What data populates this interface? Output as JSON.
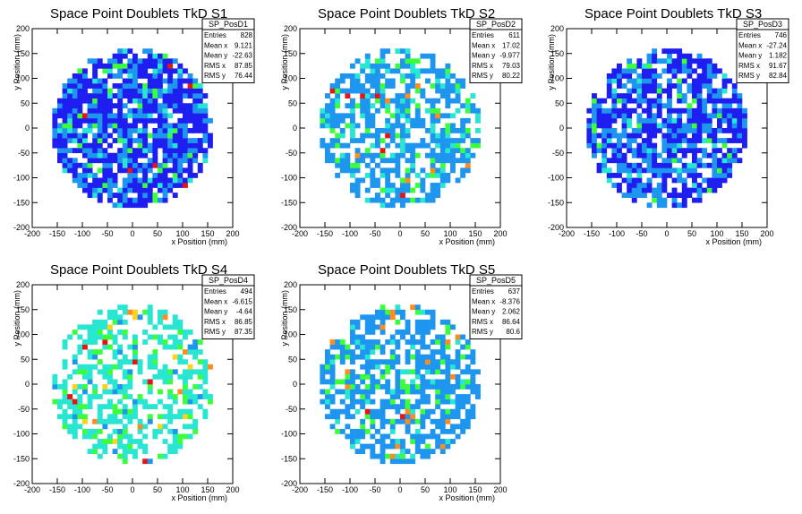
{
  "palette": {
    "navy": "#1e1ef0",
    "blue": "#1e96f0",
    "cyan": "#28e6d2",
    "green": "#3cff3c",
    "yellow": "#ffd21e",
    "orange": "#ff8c1e",
    "red": "#e61414"
  },
  "chart_data": [
    {
      "type": "heatmap",
      "title": "Space Point Doublets TkD S1",
      "xlabel": "x Position (mm)",
      "ylabel": "y Position (mm)",
      "xlim": [
        -200,
        200
      ],
      "ylim": [
        -200,
        200
      ],
      "xticks": [
        -200,
        -150,
        -100,
        -50,
        0,
        50,
        100,
        150,
        200
      ],
      "yticks": [
        -200,
        -150,
        -100,
        -50,
        0,
        50,
        100,
        150,
        200
      ],
      "grid": false,
      "legend": "top-right stats box",
      "stats": {
        "name": "SP_PosD1",
        "rows": [
          {
            "label": "Entries",
            "value": "828"
          },
          {
            "label": "Mean x",
            "value": "9.121"
          },
          {
            "label": "Mean y",
            "value": "-22.63"
          },
          {
            "label": "RMS x",
            "value": "87.85"
          },
          {
            "label": "RMS y",
            "value": "76.44"
          }
        ]
      },
      "fill": {
        "radius": 160,
        "density": 0.84,
        "seed": 11,
        "weights": {
          "navy": 0.58,
          "blue": 0.3,
          "cyan": 0.07,
          "green": 0.045,
          "red": 0.005
        }
      }
    },
    {
      "type": "heatmap",
      "title": "Space Point Doublets TkD S2",
      "xlabel": "x Position (mm)",
      "ylabel": "y Position (mm)",
      "xlim": [
        -200,
        200
      ],
      "ylim": [
        -200,
        200
      ],
      "xticks": [
        -200,
        -150,
        -100,
        -50,
        0,
        50,
        100,
        150,
        200
      ],
      "yticks": [
        -200,
        -150,
        -100,
        -50,
        0,
        50,
        100,
        150,
        200
      ],
      "grid": false,
      "legend": "top-right stats box",
      "stats": {
        "name": "SP_PosD2",
        "rows": [
          {
            "label": "Entries",
            "value": "611"
          },
          {
            "label": "Mean x",
            "value": "17.02"
          },
          {
            "label": "Mean y",
            "value": "-9.977"
          },
          {
            "label": "RMS x",
            "value": "79.03"
          },
          {
            "label": "RMS y",
            "value": "80.22"
          }
        ]
      },
      "fill": {
        "radius": 160,
        "density": 0.62,
        "seed": 23,
        "weights": {
          "blue": 0.72,
          "cyan": 0.16,
          "green": 0.09,
          "orange": 0.02,
          "red": 0.01
        }
      }
    },
    {
      "type": "heatmap",
      "title": "Space Point Doublets TkD S3",
      "xlabel": "x Position (mm)",
      "ylabel": "y Position (mm)",
      "xlim": [
        -200,
        200
      ],
      "ylim": [
        -200,
        200
      ],
      "xticks": [
        -200,
        -150,
        -100,
        -50,
        0,
        50,
        100,
        150,
        200
      ],
      "yticks": [
        -200,
        -150,
        -100,
        -50,
        0,
        50,
        100,
        150,
        200
      ],
      "grid": false,
      "legend": "top-right stats box",
      "stats": {
        "name": "SP_PosD3",
        "rows": [
          {
            "label": "Entries",
            "value": "746"
          },
          {
            "label": "Mean x",
            "value": "-27.24"
          },
          {
            "label": "Mean y",
            "value": "1.182"
          },
          {
            "label": "RMS x",
            "value": "91.67"
          },
          {
            "label": "RMS y",
            "value": "82.84"
          }
        ]
      },
      "fill": {
        "radius": 160,
        "density": 0.74,
        "seed": 37,
        "weights": {
          "navy": 0.55,
          "blue": 0.36,
          "cyan": 0.05,
          "green": 0.04
        }
      }
    },
    {
      "type": "heatmap",
      "title": "Space Point Doublets TkD S4",
      "xlabel": "x Position (mm)",
      "ylabel": "y Position (mm)",
      "xlim": [
        -200,
        200
      ],
      "ylim": [
        -200,
        200
      ],
      "xticks": [
        -200,
        -150,
        -100,
        -50,
        0,
        50,
        100,
        150,
        200
      ],
      "yticks": [
        -200,
        -150,
        -100,
        -50,
        0,
        50,
        100,
        150,
        200
      ],
      "grid": false,
      "legend": "top-right stats box",
      "stats": {
        "name": "SP_PosD4",
        "rows": [
          {
            "label": "Entries",
            "value": "494"
          },
          {
            "label": "Mean x",
            "value": "-6.615"
          },
          {
            "label": "Mean y",
            "value": "-4.64"
          },
          {
            "label": "RMS x",
            "value": "86.85"
          },
          {
            "label": "RMS y",
            "value": "87.35"
          }
        ]
      },
      "fill": {
        "radius": 160,
        "density": 0.5,
        "seed": 51,
        "weights": {
          "cyan": 0.72,
          "blue": 0.08,
          "green": 0.15,
          "yellow": 0.03,
          "orange": 0.01,
          "red": 0.01
        }
      }
    },
    {
      "type": "heatmap",
      "title": "Space Point Doublets TkD S5",
      "xlabel": "x Position (mm)",
      "ylabel": "y Position (mm)",
      "xlim": [
        -200,
        200
      ],
      "ylim": [
        -200,
        200
      ],
      "xticks": [
        -200,
        -150,
        -100,
        -50,
        0,
        50,
        100,
        150,
        200
      ],
      "yticks": [
        -200,
        -150,
        -100,
        -50,
        0,
        50,
        100,
        150,
        200
      ],
      "grid": false,
      "legend": "top-right stats box",
      "stats": {
        "name": "SP_PosD5",
        "rows": [
          {
            "label": "Entries",
            "value": "637"
          },
          {
            "label": "Mean x",
            "value": "-8.376"
          },
          {
            "label": "Mean y",
            "value": "2.062"
          },
          {
            "label": "RMS x",
            "value": "86.64"
          },
          {
            "label": "RMS y",
            "value": "80.6"
          }
        ]
      },
      "fill": {
        "radius": 160,
        "density": 0.62,
        "seed": 67,
        "weights": {
          "blue": 0.78,
          "cyan": 0.09,
          "green": 0.09,
          "orange": 0.03,
          "red": 0.01
        }
      }
    }
  ]
}
